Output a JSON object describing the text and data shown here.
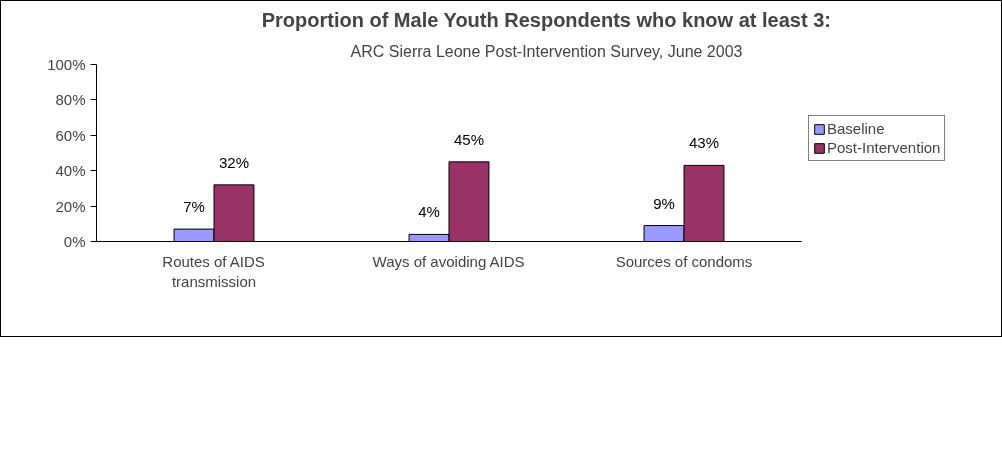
{
  "chart_data": {
    "type": "bar",
    "title": "Proportion of Male Youth Respondents who know at least 3:",
    "subtitle": "ARC Sierra Leone Post-Intervention Survey, June 2003",
    "categories": [
      "Routes of AIDS transmission",
      "Ways of avoiding AIDS",
      "Sources of condoms"
    ],
    "series": [
      {
        "name": "Baseline",
        "color": "#9999ff",
        "values": [
          7,
          4,
          9
        ],
        "value_labels": [
          "7%",
          "4%",
          "9%"
        ]
      },
      {
        "name": "Post-Intervention",
        "color": "#993366",
        "values": [
          32,
          45,
          43
        ],
        "value_labels": [
          "32%",
          "45%",
          "43%"
        ]
      }
    ],
    "ylim": [
      0,
      100
    ],
    "yticks": [
      {
        "value": 0,
        "label": "0%"
      },
      {
        "value": 20,
        "label": "20%"
      },
      {
        "value": 40,
        "label": "40%"
      },
      {
        "value": 60,
        "label": "60%"
      },
      {
        "value": 80,
        "label": "80%"
      },
      {
        "value": 100,
        "label": "100%"
      }
    ],
    "grid": false,
    "legend": "right"
  }
}
